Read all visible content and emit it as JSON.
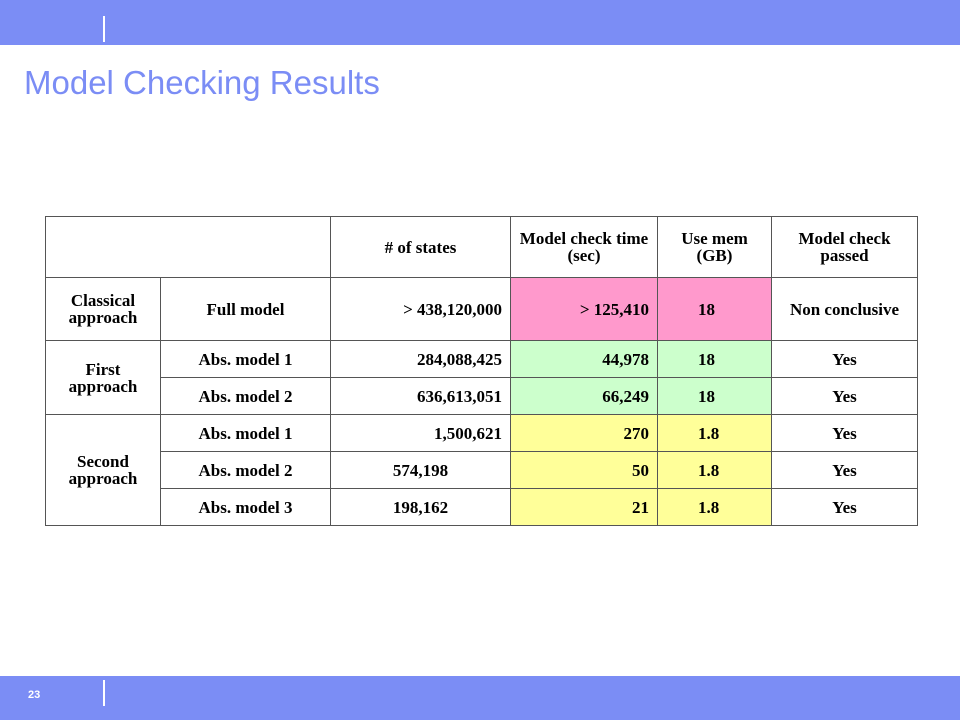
{
  "slide": {
    "title": "Model Checking Results",
    "page_number": "23"
  },
  "colors": {
    "bar": "#7b8df5",
    "title": "#7b8df5",
    "pink": "#ff99cc",
    "green": "#ccffcc",
    "yellow": "#ffff99"
  },
  "table": {
    "headers": {
      "states": "# of states",
      "time": "Model check time (sec)",
      "mem": "Use mem (GB)",
      "passed": "Model check passed"
    },
    "groups": {
      "classical": "Classical approach",
      "first": "First approach",
      "second": "Second approach"
    },
    "rows": [
      {
        "model": "Full model",
        "states": "> 438,120,000",
        "time": "> 125,410",
        "mem": "18",
        "passed": "Non conclusive"
      },
      {
        "model": "Abs. model 1",
        "states": "284,088,425",
        "time": "44,978",
        "mem": "18",
        "passed": "Yes"
      },
      {
        "model": "Abs. model 2",
        "states": "636,613,051",
        "time": "66,249",
        "mem": "18",
        "passed": "Yes"
      },
      {
        "model": "Abs. model 1",
        "states": "1,500,621",
        "time": "270",
        "mem": "1.8",
        "passed": "Yes"
      },
      {
        "model": "Abs. model 2",
        "states": "574,198",
        "time": "50",
        "mem": "1.8",
        "passed": "Yes"
      },
      {
        "model": "Abs. model 3",
        "states": "198,162",
        "time": "21",
        "mem": "1.8",
        "passed": "Yes"
      }
    ]
  }
}
